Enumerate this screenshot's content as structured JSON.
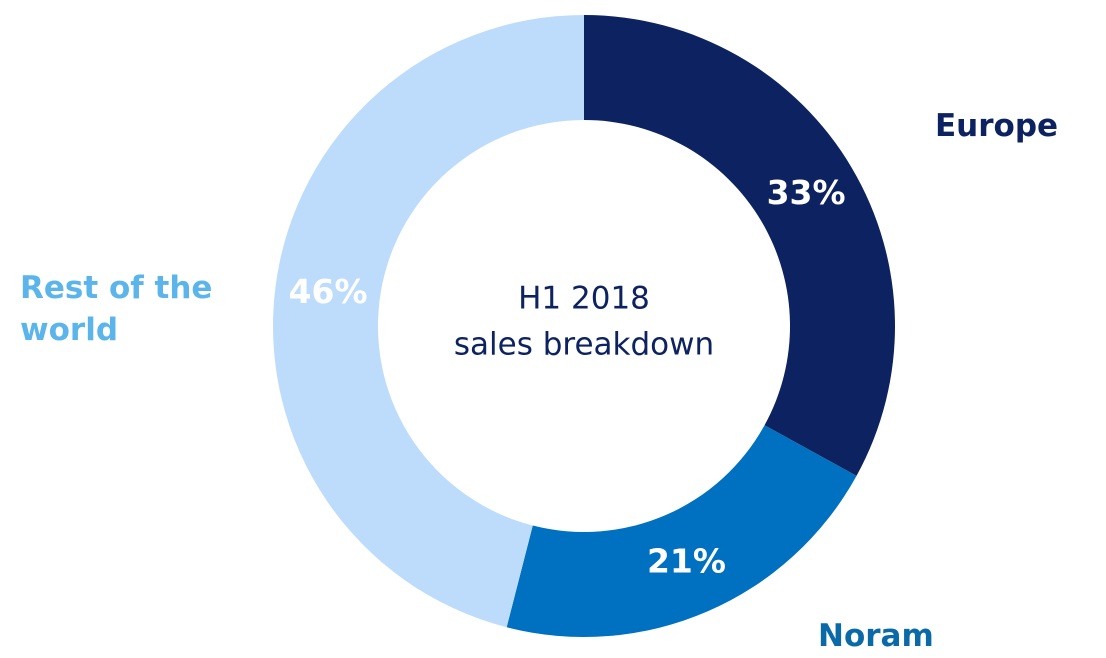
{
  "chart_data": {
    "type": "donut",
    "title": "H1 2018",
    "subtitle": "sales breakdown",
    "categories": [
      "Europe",
      "Noram",
      "Rest of the world"
    ],
    "values": [
      33,
      21,
      46
    ],
    "value_labels": [
      "33%",
      "21%",
      "46%"
    ],
    "colors": [
      "#0d2260",
      "#0070c0",
      "#bddcfb"
    ],
    "label_colors": [
      "#0d2260",
      "#0a6aa8",
      "#5bb5ea"
    ]
  }
}
